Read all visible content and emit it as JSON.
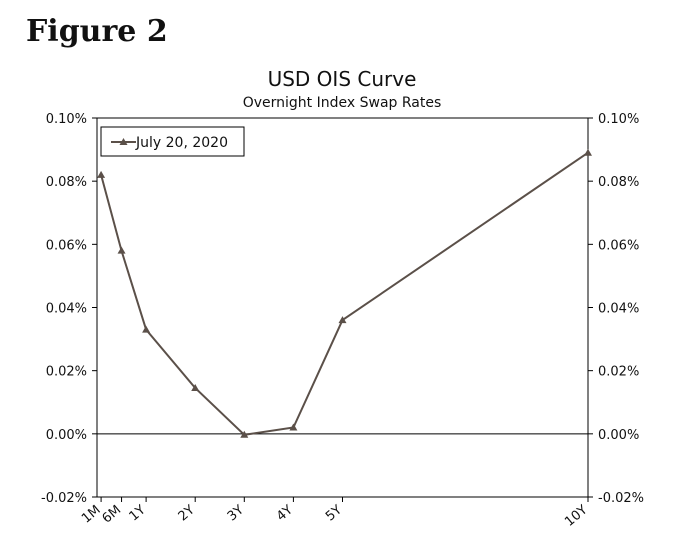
{
  "figure_label": "Figure 2",
  "chart_data": {
    "type": "line",
    "title": "USD OIS Curve",
    "subtitle": "Overnight Index Swap Rates",
    "xlabel": "",
    "ylabel": "",
    "x": [
      "1M",
      "6M",
      "1Y",
      "2Y",
      "3Y",
      "4Y",
      "5Y",
      "10Y"
    ],
    "x_years": [
      0.0833,
      0.5,
      1,
      2,
      3,
      4,
      5,
      10
    ],
    "ylim": [
      -0.02,
      0.1
    ],
    "y_ticks": [
      "-0.02%",
      "0.00%",
      "0.02%",
      "0.04%",
      "0.06%",
      "0.08%",
      "0.10%"
    ],
    "y_tick_values": [
      -0.02,
      0.0,
      0.02,
      0.04,
      0.06,
      0.08,
      0.1
    ],
    "series": [
      {
        "name": "July 20, 2020",
        "values": [
          0.082,
          0.058,
          0.033,
          0.0145,
          -0.0003,
          0.002,
          0.036,
          0.089
        ],
        "color": "#5b5049",
        "marker": "triangle"
      }
    ],
    "legend_position": "top-left",
    "grid": false,
    "secondary_y_axis": true
  }
}
